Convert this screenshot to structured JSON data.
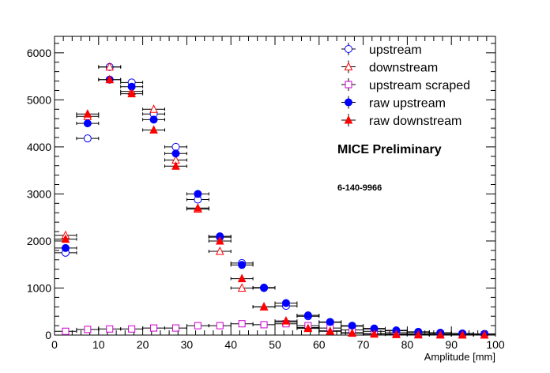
{
  "chart_data": {
    "type": "scatter",
    "xlabel": "Amplitude [mm]",
    "ylabel": "",
    "xlim": [
      0,
      100
    ],
    "ylim": [
      0,
      6350
    ],
    "x_ticks": [
      0,
      10,
      20,
      30,
      40,
      50,
      60,
      70,
      80,
      90,
      100
    ],
    "y_ticks": [
      0,
      1000,
      2000,
      3000,
      4000,
      5000,
      6000
    ],
    "x_bin_halfwidth": 2.5,
    "grid": false,
    "legend_position": "top-right",
    "annotations": [
      "MICE Preliminary",
      "6-140-9966"
    ],
    "x": [
      2.5,
      7.5,
      12.5,
      17.5,
      22.5,
      27.5,
      32.5,
      37.5,
      42.5,
      47.5,
      52.5,
      57.5,
      62.5,
      67.5,
      72.5,
      77.5,
      82.5,
      87.5,
      92.5,
      97.5
    ],
    "series": [
      {
        "name": "upstream",
        "marker": "open-circle",
        "color": "#0000ff",
        "values": [
          1750,
          4180,
          5700,
          5370,
          4700,
          4000,
          2880,
          2080,
          1530,
          1000,
          620,
          400,
          270,
          190,
          130,
          90,
          60,
          45,
          30,
          20
        ]
      },
      {
        "name": "downstream",
        "marker": "open-triangle",
        "color": "#ff0000",
        "values": [
          2120,
          4650,
          5700,
          5180,
          4800,
          3720,
          2680,
          1780,
          1000,
          600,
          280,
          160,
          90,
          50,
          30,
          20,
          12,
          8,
          5,
          3
        ]
      },
      {
        "name": "upstream scraped",
        "marker": "open-square",
        "color": "#cc00cc",
        "values": [
          80,
          120,
          130,
          130,
          150,
          150,
          200,
          200,
          240,
          220,
          240,
          200,
          150,
          110,
          80,
          50,
          30,
          20,
          10,
          5
        ]
      },
      {
        "name": "raw upstream",
        "marker": "filled-circle",
        "color": "#0000ff",
        "values": [
          1850,
          4500,
          5430,
          5280,
          4580,
          3860,
          3000,
          2100,
          1490,
          1010,
          680,
          420,
          280,
          200,
          140,
          100,
          70,
          50,
          35,
          25
        ]
      },
      {
        "name": "raw downstream",
        "marker": "filled-triangle",
        "color": "#ff0000",
        "values": [
          2040,
          4700,
          5430,
          5130,
          4360,
          3590,
          2700,
          2000,
          1200,
          600,
          300,
          140,
          80,
          40,
          20,
          10,
          5,
          3,
          2,
          1
        ]
      }
    ]
  }
}
